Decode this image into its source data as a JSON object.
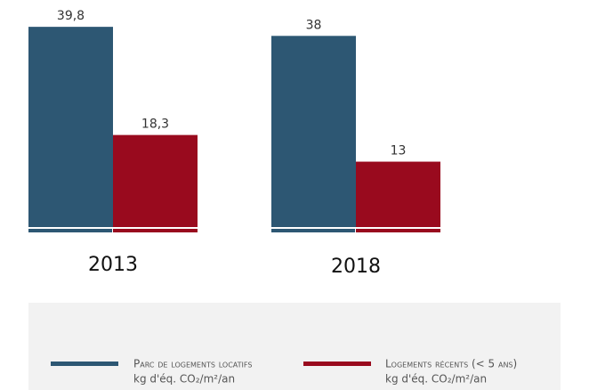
{
  "chart_data": {
    "type": "bar",
    "categories": [
      "2013",
      "2018"
    ],
    "series": [
      {
        "name": "Parc de logements locatifs",
        "unit": "kg d'éq. CO₂/m²/an",
        "color": "#2d5773",
        "values": [
          39.8,
          38
        ],
        "value_labels": [
          "39,8",
          "38"
        ]
      },
      {
        "name": "Logements récents (< 5 ans)",
        "unit": "kg d'éq. CO₂/m²/an",
        "color": "#990a1e",
        "values": [
          18.3,
          13
        ],
        "value_labels": [
          "18,3",
          "13"
        ]
      }
    ],
    "ylim": [
      0,
      40
    ]
  }
}
